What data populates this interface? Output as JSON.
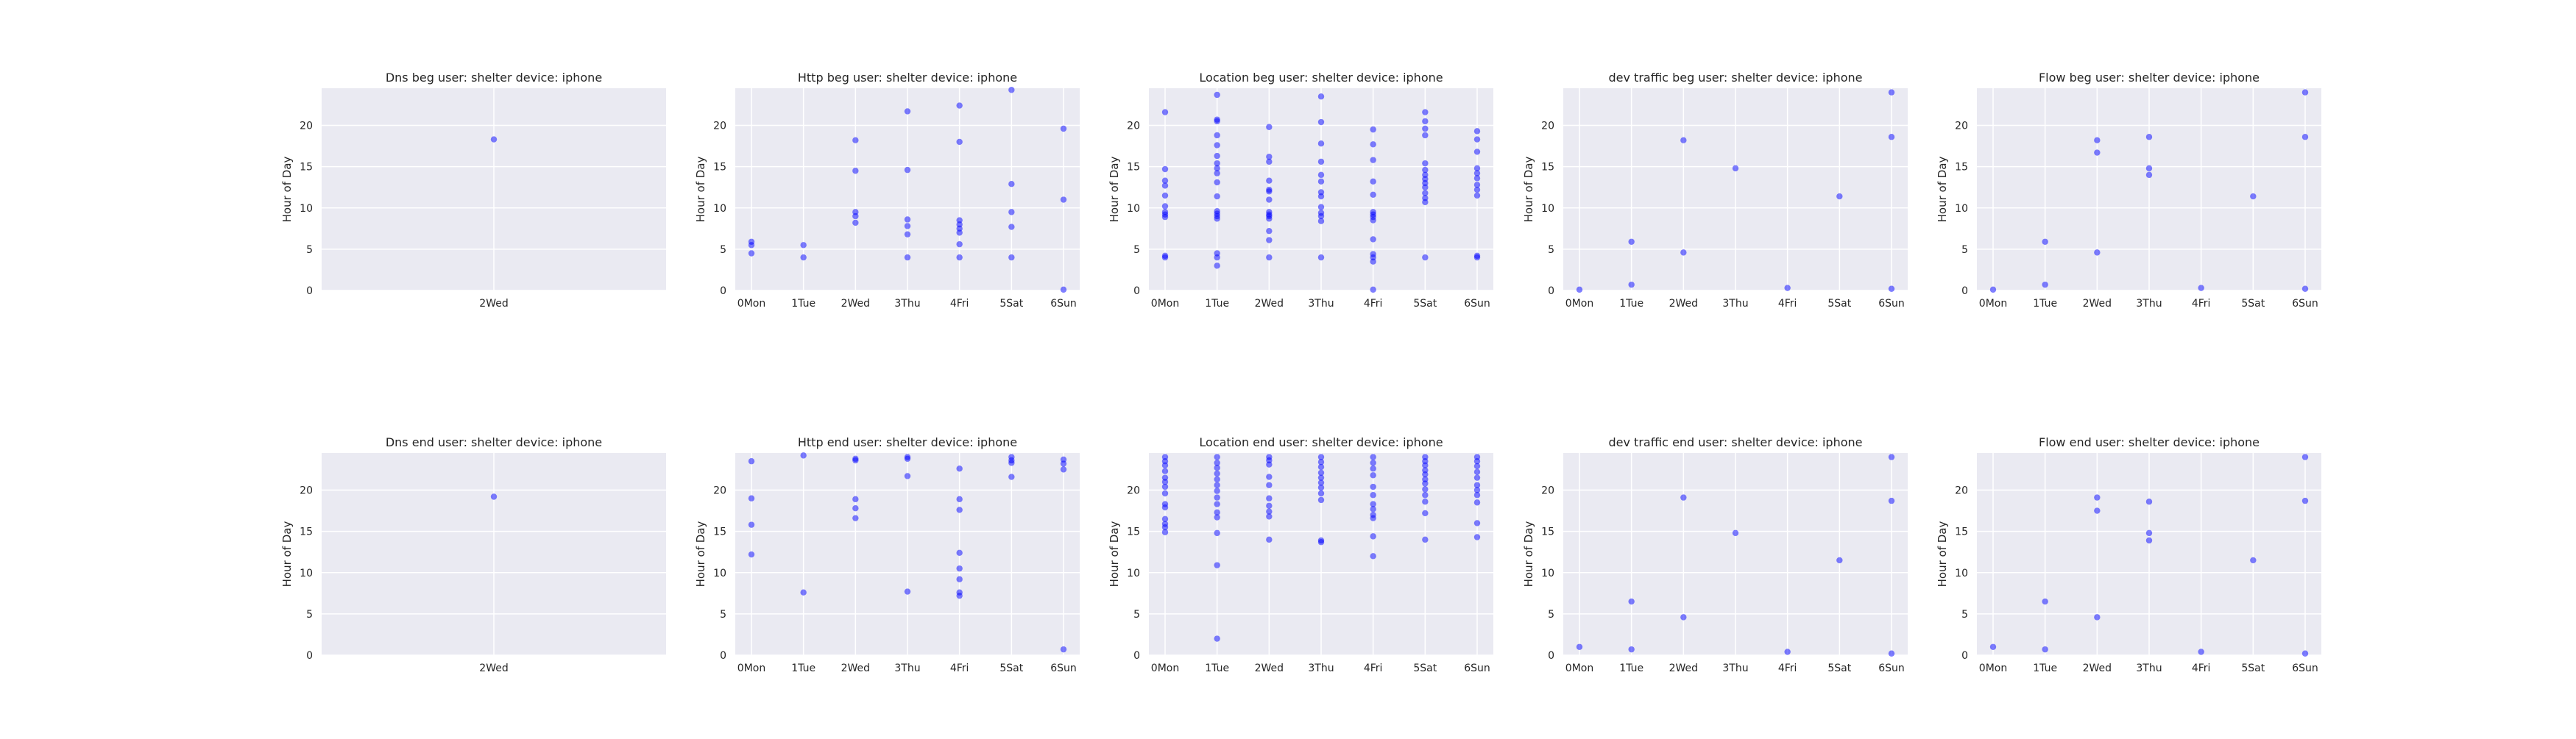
{
  "chart_data": [
    {
      "type": "scatter",
      "title": "Dns beg user: shelter device: iphone",
      "ylabel": "Hour of Day",
      "categories": [
        "2Wed"
      ],
      "ylim": [
        0,
        24.5
      ],
      "yticks": [
        0,
        5,
        10,
        15,
        20
      ],
      "grid": true,
      "color": "#0000ff",
      "points": [
        [
          0,
          18.3
        ]
      ]
    },
    {
      "type": "scatter",
      "title": "Http beg user: shelter device: iphone",
      "ylabel": "Hour of Day",
      "categories": [
        "0Mon",
        "1Tue",
        "2Wed",
        "3Thu",
        "4Fri",
        "5Sat",
        "6Sun"
      ],
      "ylim": [
        0,
        24.5
      ],
      "yticks": [
        0,
        5,
        10,
        15,
        20
      ],
      "grid": true,
      "color": "#0000ff",
      "points": [
        [
          0,
          5.9
        ],
        [
          0,
          5.5
        ],
        [
          0,
          4.5
        ],
        [
          1,
          5.5
        ],
        [
          1,
          4.0
        ],
        [
          2,
          18.2
        ],
        [
          2,
          14.5
        ],
        [
          2,
          9.5
        ],
        [
          2,
          9.0
        ],
        [
          2,
          8.2
        ],
        [
          3,
          21.7
        ],
        [
          3,
          14.6
        ],
        [
          3,
          8.6
        ],
        [
          3,
          7.8
        ],
        [
          3,
          6.8
        ],
        [
          3,
          4.0
        ],
        [
          4,
          22.4
        ],
        [
          4,
          18.0
        ],
        [
          4,
          8.5
        ],
        [
          4,
          8.0
        ],
        [
          4,
          7.5
        ],
        [
          4,
          7.0
        ],
        [
          4,
          5.6
        ],
        [
          4,
          4.0
        ],
        [
          5,
          24.3
        ],
        [
          5,
          12.9
        ],
        [
          5,
          9.5
        ],
        [
          5,
          7.7
        ],
        [
          5,
          4.0
        ],
        [
          6,
          19.6
        ],
        [
          6,
          11.0
        ],
        [
          6,
          0.1
        ]
      ]
    },
    {
      "type": "scatter",
      "title": "Location beg user: shelter device: iphone",
      "ylabel": "Hour of Day",
      "categories": [
        "0Mon",
        "1Tue",
        "2Wed",
        "3Thu",
        "4Fri",
        "5Sat",
        "6Sun"
      ],
      "ylim": [
        0,
        24.5
      ],
      "yticks": [
        0,
        5,
        10,
        15,
        20
      ],
      "grid": true,
      "color": "#0000ff",
      "points": [
        [
          0,
          21.6
        ],
        [
          0,
          14.7
        ],
        [
          0,
          13.3
        ],
        [
          0,
          12.7
        ],
        [
          0,
          11.5
        ],
        [
          0,
          10.2
        ],
        [
          0,
          9.5
        ],
        [
          0,
          9.2
        ],
        [
          0,
          8.9
        ],
        [
          0,
          4.2
        ],
        [
          0,
          4.0
        ],
        [
          1,
          23.7
        ],
        [
          1,
          20.7
        ],
        [
          1,
          20.5
        ],
        [
          1,
          18.8
        ],
        [
          1,
          17.6
        ],
        [
          1,
          16.3
        ],
        [
          1,
          15.4
        ],
        [
          1,
          14.8
        ],
        [
          1,
          14.2
        ],
        [
          1,
          13.1
        ],
        [
          1,
          11.4
        ],
        [
          1,
          9.6
        ],
        [
          1,
          9.3
        ],
        [
          1,
          9.0
        ],
        [
          1,
          8.7
        ],
        [
          1,
          4.5
        ],
        [
          1,
          4.0
        ],
        [
          1,
          3.0
        ],
        [
          2,
          19.8
        ],
        [
          2,
          16.2
        ],
        [
          2,
          15.6
        ],
        [
          2,
          13.3
        ],
        [
          2,
          12.2
        ],
        [
          2,
          12.0
        ],
        [
          2,
          11.0
        ],
        [
          2,
          9.5
        ],
        [
          2,
          9.2
        ],
        [
          2,
          9.0
        ],
        [
          2,
          8.7
        ],
        [
          2,
          7.2
        ],
        [
          2,
          6.1
        ],
        [
          2,
          4.0
        ],
        [
          3,
          23.5
        ],
        [
          3,
          20.4
        ],
        [
          3,
          17.8
        ],
        [
          3,
          15.6
        ],
        [
          3,
          14.0
        ],
        [
          3,
          13.2
        ],
        [
          3,
          11.9
        ],
        [
          3,
          11.4
        ],
        [
          3,
          10.1
        ],
        [
          3,
          9.4
        ],
        [
          3,
          9.0
        ],
        [
          3,
          8.4
        ],
        [
          3,
          4.0
        ],
        [
          4,
          19.5
        ],
        [
          4,
          17.7
        ],
        [
          4,
          15.8
        ],
        [
          4,
          13.2
        ],
        [
          4,
          11.6
        ],
        [
          4,
          9.5
        ],
        [
          4,
          9.2
        ],
        [
          4,
          8.9
        ],
        [
          4,
          8.5
        ],
        [
          4,
          6.2
        ],
        [
          4,
          4.4
        ],
        [
          4,
          4.0
        ],
        [
          4,
          3.5
        ],
        [
          4,
          0.1
        ],
        [
          5,
          21.6
        ],
        [
          5,
          20.5
        ],
        [
          5,
          19.6
        ],
        [
          5,
          18.8
        ],
        [
          5,
          15.4
        ],
        [
          5,
          14.6
        ],
        [
          5,
          14.0
        ],
        [
          5,
          13.5
        ],
        [
          5,
          13.0
        ],
        [
          5,
          12.5
        ],
        [
          5,
          11.8
        ],
        [
          5,
          11.2
        ],
        [
          5,
          10.7
        ],
        [
          5,
          4.0
        ],
        [
          6,
          19.3
        ],
        [
          6,
          18.3
        ],
        [
          6,
          16.8
        ],
        [
          6,
          14.8
        ],
        [
          6,
          14.2
        ],
        [
          6,
          13.6
        ],
        [
          6,
          12.8
        ],
        [
          6,
          12.2
        ],
        [
          6,
          11.5
        ],
        [
          6,
          4.2
        ],
        [
          6,
          4.0
        ]
      ]
    },
    {
      "type": "scatter",
      "title": "dev traffic beg user: shelter device: iphone",
      "ylabel": "Hour of Day",
      "categories": [
        "0Mon",
        "1Tue",
        "2Wed",
        "3Thu",
        "4Fri",
        "5Sat",
        "6Sun"
      ],
      "ylim": [
        0,
        24.5
      ],
      "yticks": [
        0,
        5,
        10,
        15,
        20
      ],
      "grid": true,
      "color": "#0000ff",
      "points": [
        [
          0,
          0.1
        ],
        [
          1,
          5.9
        ],
        [
          1,
          0.7
        ],
        [
          2,
          18.2
        ],
        [
          2,
          4.6
        ],
        [
          3,
          14.8
        ],
        [
          4,
          0.3
        ],
        [
          5,
          11.4
        ],
        [
          6,
          24.0
        ],
        [
          6,
          18.6
        ],
        [
          6,
          0.2
        ]
      ]
    },
    {
      "type": "scatter",
      "title": "Flow beg user: shelter device: iphone",
      "ylabel": "Hour of Day",
      "categories": [
        "0Mon",
        "1Tue",
        "2Wed",
        "3Thu",
        "4Fri",
        "5Sat",
        "6Sun"
      ],
      "ylim": [
        0,
        24.5
      ],
      "yticks": [
        0,
        5,
        10,
        15,
        20
      ],
      "grid": true,
      "color": "#0000ff",
      "points": [
        [
          0,
          0.1
        ],
        [
          1,
          5.9
        ],
        [
          1,
          0.7
        ],
        [
          2,
          18.2
        ],
        [
          2,
          16.7
        ],
        [
          2,
          4.6
        ],
        [
          3,
          18.6
        ],
        [
          3,
          14.8
        ],
        [
          3,
          14.0
        ],
        [
          4,
          0.3
        ],
        [
          5,
          11.4
        ],
        [
          6,
          24.0
        ],
        [
          6,
          18.6
        ],
        [
          6,
          0.2
        ]
      ]
    },
    {
      "type": "scatter",
      "title": "Dns end user: shelter device: iphone",
      "ylabel": "Hour of Day",
      "categories": [
        "2Wed"
      ],
      "ylim": [
        0,
        24.5
      ],
      "yticks": [
        0,
        5,
        10,
        15,
        20
      ],
      "grid": true,
      "color": "#0000ff",
      "points": [
        [
          0,
          19.2
        ]
      ]
    },
    {
      "type": "scatter",
      "title": "Http end user: shelter device: iphone",
      "ylabel": "Hour of Day",
      "categories": [
        "0Mon",
        "1Tue",
        "2Wed",
        "3Thu",
        "4Fri",
        "5Sat",
        "6Sun"
      ],
      "ylim": [
        0,
        24.5
      ],
      "yticks": [
        0,
        5,
        10,
        15,
        20
      ],
      "grid": true,
      "color": "#0000ff",
      "points": [
        [
          0,
          23.5
        ],
        [
          0,
          19.0
        ],
        [
          0,
          15.8
        ],
        [
          0,
          12.2
        ],
        [
          1,
          24.2
        ],
        [
          1,
          7.6
        ],
        [
          2,
          23.8
        ],
        [
          2,
          23.6
        ],
        [
          2,
          18.9
        ],
        [
          2,
          17.8
        ],
        [
          2,
          16.6
        ],
        [
          3,
          24.0
        ],
        [
          3,
          23.8
        ],
        [
          3,
          21.7
        ],
        [
          3,
          7.7
        ],
        [
          4,
          22.6
        ],
        [
          4,
          18.9
        ],
        [
          4,
          17.6
        ],
        [
          4,
          12.4
        ],
        [
          4,
          10.5
        ],
        [
          4,
          9.2
        ],
        [
          4,
          7.6
        ],
        [
          4,
          7.2
        ],
        [
          5,
          24.0
        ],
        [
          5,
          23.6
        ],
        [
          5,
          23.3
        ],
        [
          5,
          21.6
        ],
        [
          6,
          23.7
        ],
        [
          6,
          23.2
        ],
        [
          6,
          22.5
        ],
        [
          6,
          0.7
        ]
      ]
    },
    {
      "type": "scatter",
      "title": "Location end user: shelter device: iphone",
      "ylabel": "Hour of Day",
      "categories": [
        "0Mon",
        "1Tue",
        "2Wed",
        "3Thu",
        "4Fri",
        "5Sat",
        "6Sun"
      ],
      "ylim": [
        0,
        24.5
      ],
      "yticks": [
        0,
        5,
        10,
        15,
        20
      ],
      "grid": true,
      "color": "#0000ff",
      "points": [
        [
          0,
          24.0
        ],
        [
          0,
          23.5
        ],
        [
          0,
          23.0
        ],
        [
          0,
          22.3
        ],
        [
          0,
          21.5
        ],
        [
          0,
          21.0
        ],
        [
          0,
          20.4
        ],
        [
          0,
          19.6
        ],
        [
          0,
          18.3
        ],
        [
          0,
          17.9
        ],
        [
          0,
          16.5
        ],
        [
          0,
          15.9
        ],
        [
          0,
          15.5
        ],
        [
          0,
          14.9
        ],
        [
          1,
          24.0
        ],
        [
          1,
          23.3
        ],
        [
          1,
          22.7
        ],
        [
          1,
          22.0
        ],
        [
          1,
          21.3
        ],
        [
          1,
          20.6
        ],
        [
          1,
          19.9
        ],
        [
          1,
          19.1
        ],
        [
          1,
          18.3
        ],
        [
          1,
          17.3
        ],
        [
          1,
          16.7
        ],
        [
          1,
          14.8
        ],
        [
          1,
          10.9
        ],
        [
          1,
          2.0
        ],
        [
          2,
          24.0
        ],
        [
          2,
          23.6
        ],
        [
          2,
          23.1
        ],
        [
          2,
          21.6
        ],
        [
          2,
          20.6
        ],
        [
          2,
          19.0
        ],
        [
          2,
          18.1
        ],
        [
          2,
          17.4
        ],
        [
          2,
          16.8
        ],
        [
          2,
          14.0
        ],
        [
          3,
          24.0
        ],
        [
          3,
          23.4
        ],
        [
          3,
          22.8
        ],
        [
          3,
          22.1
        ],
        [
          3,
          21.5
        ],
        [
          3,
          20.9
        ],
        [
          3,
          20.3
        ],
        [
          3,
          19.6
        ],
        [
          3,
          18.8
        ],
        [
          3,
          13.9
        ],
        [
          3,
          13.7
        ],
        [
          4,
          24.0
        ],
        [
          4,
          23.3
        ],
        [
          4,
          22.6
        ],
        [
          4,
          21.8
        ],
        [
          4,
          20.4
        ],
        [
          4,
          19.4
        ],
        [
          4,
          18.3
        ],
        [
          4,
          17.7
        ],
        [
          4,
          17.0
        ],
        [
          4,
          16.6
        ],
        [
          4,
          14.4
        ],
        [
          4,
          12.0
        ],
        [
          5,
          24.0
        ],
        [
          5,
          23.5
        ],
        [
          5,
          23.0
        ],
        [
          5,
          22.4
        ],
        [
          5,
          21.9
        ],
        [
          5,
          21.3
        ],
        [
          5,
          20.8
        ],
        [
          5,
          20.1
        ],
        [
          5,
          19.4
        ],
        [
          5,
          18.6
        ],
        [
          5,
          17.2
        ],
        [
          5,
          14.0
        ],
        [
          6,
          24.0
        ],
        [
          6,
          23.5
        ],
        [
          6,
          22.9
        ],
        [
          6,
          22.2
        ],
        [
          6,
          21.5
        ],
        [
          6,
          20.6
        ],
        [
          6,
          20.0
        ],
        [
          6,
          19.4
        ],
        [
          6,
          18.5
        ],
        [
          6,
          16.0
        ],
        [
          6,
          14.3
        ]
      ]
    },
    {
      "type": "scatter",
      "title": "dev traffic end user: shelter device: iphone",
      "ylabel": "Hour of Day",
      "categories": [
        "0Mon",
        "1Tue",
        "2Wed",
        "3Thu",
        "4Fri",
        "5Sat",
        "6Sun"
      ],
      "ylim": [
        0,
        24.5
      ],
      "yticks": [
        0,
        5,
        10,
        15,
        20
      ],
      "grid": true,
      "color": "#0000ff",
      "points": [
        [
          0,
          1.0
        ],
        [
          1,
          6.5
        ],
        [
          1,
          0.7
        ],
        [
          2,
          19.1
        ],
        [
          2,
          4.6
        ],
        [
          3,
          14.8
        ],
        [
          4,
          0.4
        ],
        [
          5,
          11.5
        ],
        [
          6,
          24.0
        ],
        [
          6,
          18.7
        ],
        [
          6,
          0.2
        ]
      ]
    },
    {
      "type": "scatter",
      "title": "Flow end user: shelter device: iphone",
      "ylabel": "Hour of Day",
      "categories": [
        "0Mon",
        "1Tue",
        "2Wed",
        "3Thu",
        "4Fri",
        "5Sat",
        "6Sun"
      ],
      "ylim": [
        0,
        24.5
      ],
      "yticks": [
        0,
        5,
        10,
        15,
        20
      ],
      "grid": true,
      "color": "#0000ff",
      "points": [
        [
          0,
          1.0
        ],
        [
          1,
          6.5
        ],
        [
          1,
          0.7
        ],
        [
          2,
          19.1
        ],
        [
          2,
          17.5
        ],
        [
          2,
          4.6
        ],
        [
          3,
          18.6
        ],
        [
          3,
          14.8
        ],
        [
          3,
          13.9
        ],
        [
          4,
          0.4
        ],
        [
          5,
          11.5
        ],
        [
          6,
          24.0
        ],
        [
          6,
          18.7
        ],
        [
          6,
          0.2
        ]
      ]
    }
  ]
}
